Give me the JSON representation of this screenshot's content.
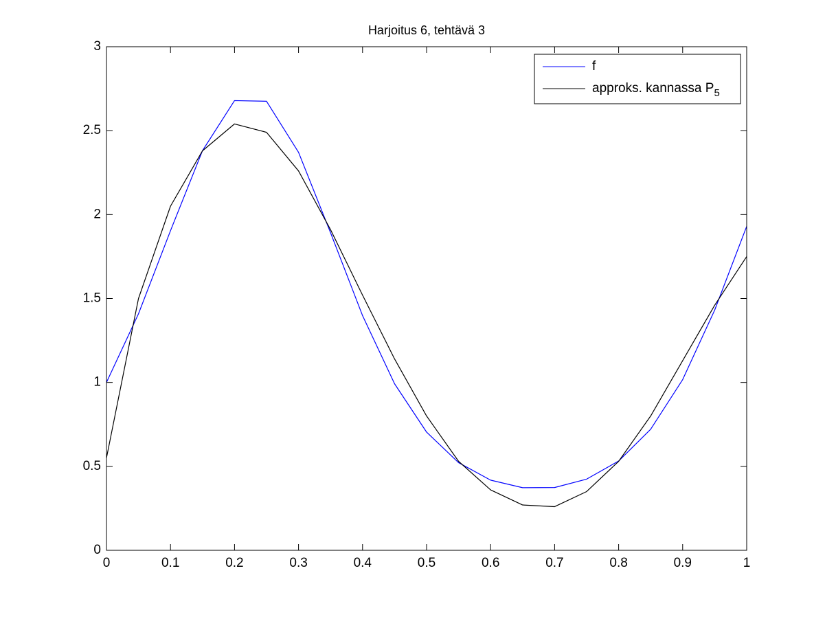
{
  "chart_data": {
    "type": "line",
    "title": "Harjoitus 6, tehtävä 3",
    "x": [
      0,
      0.05,
      0.1,
      0.15,
      0.2,
      0.25,
      0.3,
      0.35,
      0.4,
      0.45,
      0.5,
      0.55,
      0.6,
      0.65,
      0.7,
      0.75,
      0.8,
      0.85,
      0.9,
      0.95,
      1
    ],
    "series": [
      {
        "name": "f",
        "color": "#0000ff",
        "values": [
          1,
          1.409,
          1.904,
          2.381,
          2.679,
          2.675,
          2.371,
          1.892,
          1.398,
          0.992,
          0.704,
          0.522,
          0.418,
          0.373,
          0.374,
          0.424,
          0.532,
          0.721,
          1.017,
          1.431,
          1.93
        ]
      },
      {
        "name": "approks. kannassa P",
        "name_subscript": "5",
        "color": "#000000",
        "values": [
          0.55,
          1.5,
          2.05,
          2.38,
          2.54,
          2.49,
          2.26,
          1.91,
          1.52,
          1.14,
          0.8,
          0.53,
          0.36,
          0.27,
          0.26,
          0.35,
          0.53,
          0.8,
          1.13,
          1.46,
          1.75
        ]
      }
    ],
    "xlim": [
      0,
      1
    ],
    "xticks": [
      0,
      0.1,
      0.2,
      0.3,
      0.4,
      0.5,
      0.6,
      0.7,
      0.8,
      0.9,
      1
    ],
    "ylim": [
      0,
      3
    ],
    "yticks": [
      0,
      0.5,
      1,
      1.5,
      2,
      2.5,
      3
    ],
    "legend": "upper-right"
  }
}
